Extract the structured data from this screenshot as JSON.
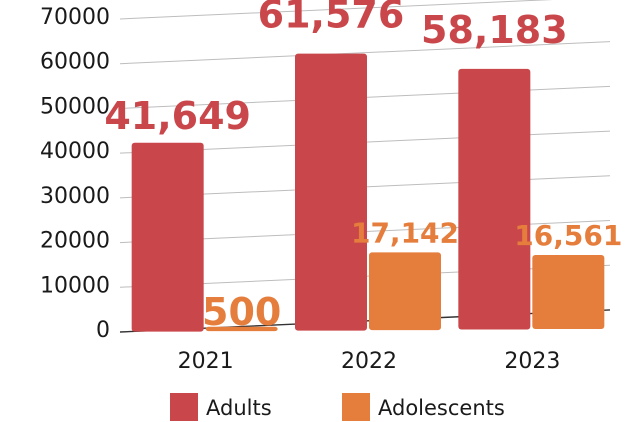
{
  "chart_data": {
    "type": "bar",
    "categories": [
      "2021",
      "2022",
      "2023"
    ],
    "series": [
      {
        "name": "Adults",
        "color": "#c9474a",
        "values": [
          41649,
          61576,
          58183
        ],
        "labels": [
          "41,649",
          "61,576",
          "58,183"
        ]
      },
      {
        "name": "Adolescents",
        "color": "#e57d3c",
        "values": [
          500,
          17142,
          16561
        ],
        "labels": [
          "500",
          "17,142",
          "16,561"
        ]
      }
    ],
    "ylim": [
      0,
      70000
    ],
    "yticks": [
      "0",
      "10000",
      "20000",
      "30000",
      "40000",
      "50000",
      "60000",
      "70000"
    ],
    "grid": true,
    "legend_position": "bottom",
    "title": "",
    "xlabel": "",
    "ylabel": ""
  }
}
